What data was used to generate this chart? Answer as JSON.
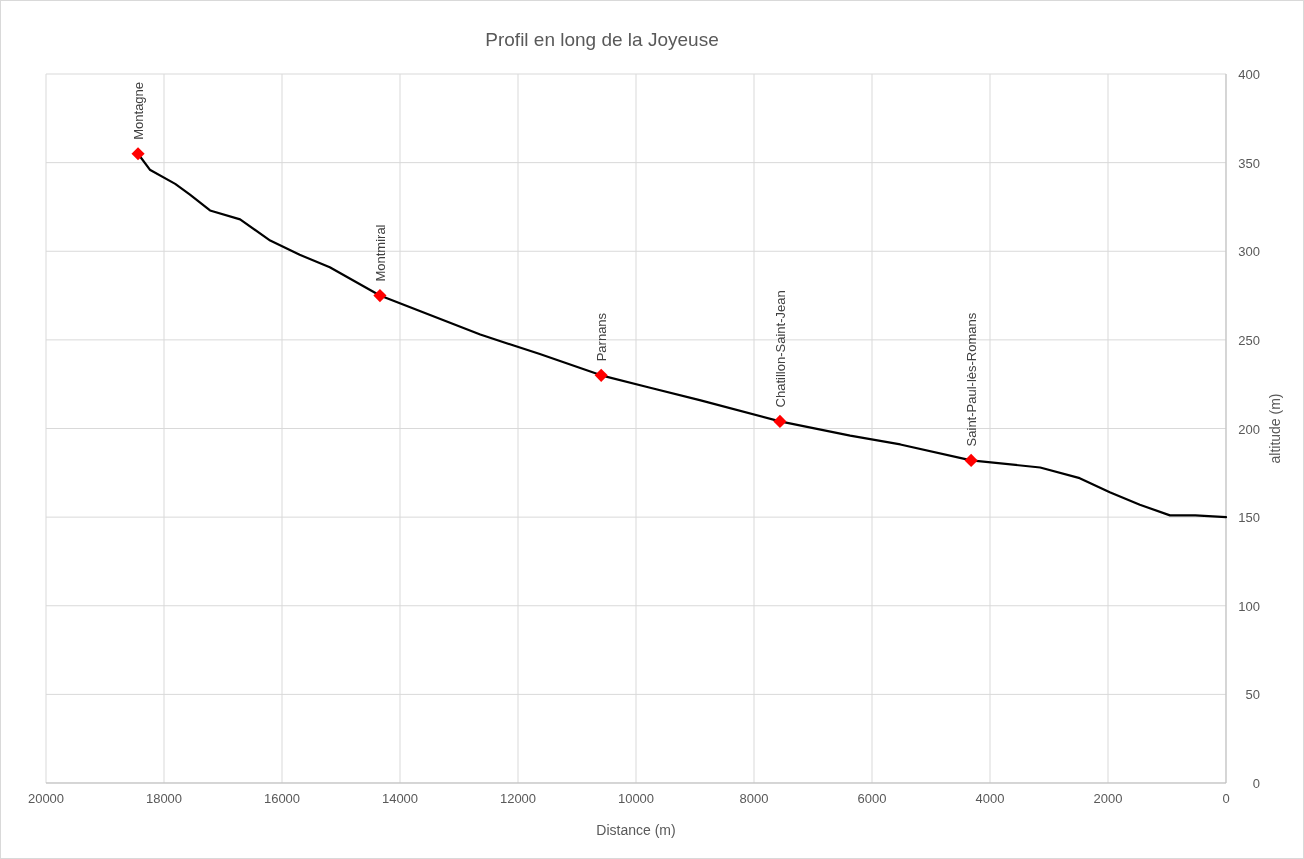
{
  "chart_data": {
    "type": "line",
    "title": "Profil en long de la Joyeuse",
    "xlabel": "Distance (m)",
    "ylabel": "altitude (m)",
    "xlim": [
      20000,
      0
    ],
    "xticks": [
      20000,
      18000,
      16000,
      14000,
      12000,
      10000,
      8000,
      6000,
      4000,
      2000,
      0
    ],
    "ylim": [
      0,
      400
    ],
    "yticks": [
      0,
      50,
      100,
      150,
      200,
      250,
      300,
      350,
      400
    ],
    "grid": true,
    "series": [
      {
        "color": "#000000",
        "marker": "none",
        "x": [
          18440,
          18240,
          17810,
          17560,
          17220,
          16710,
          16200,
          15700,
          15190,
          14340,
          13490,
          12640,
          11630,
          10590,
          9760,
          8920,
          7560,
          6370,
          5520,
          4320,
          3150,
          2480,
          1970,
          1460,
          950,
          520,
          0
        ],
        "values": [
          355,
          346,
          338,
          332,
          323,
          318,
          306,
          298,
          291,
          275,
          264,
          253,
          242,
          230,
          223,
          216,
          204,
          196,
          191,
          182,
          178,
          172,
          164,
          157,
          151,
          151,
          150
        ]
      },
      {
        "type": "scatter",
        "color": "#ff0000",
        "marker": "diamond",
        "x": [
          18440,
          14340,
          10590,
          7560,
          4320
        ],
        "values": [
          355,
          275,
          230,
          204,
          182
        ]
      }
    ],
    "annotations": [
      {
        "text": "Montagne",
        "x": 18440,
        "y": 355
      },
      {
        "text": "Montmiral",
        "x": 14340,
        "y": 275
      },
      {
        "text": "Parnans",
        "x": 10590,
        "y": 230
      },
      {
        "text": "Chatillon-Saint-Jean",
        "x": 7560,
        "y": 204
      },
      {
        "text": "Saint-Paul-lès-Romans",
        "x": 4320,
        "y": 182
      }
    ]
  }
}
